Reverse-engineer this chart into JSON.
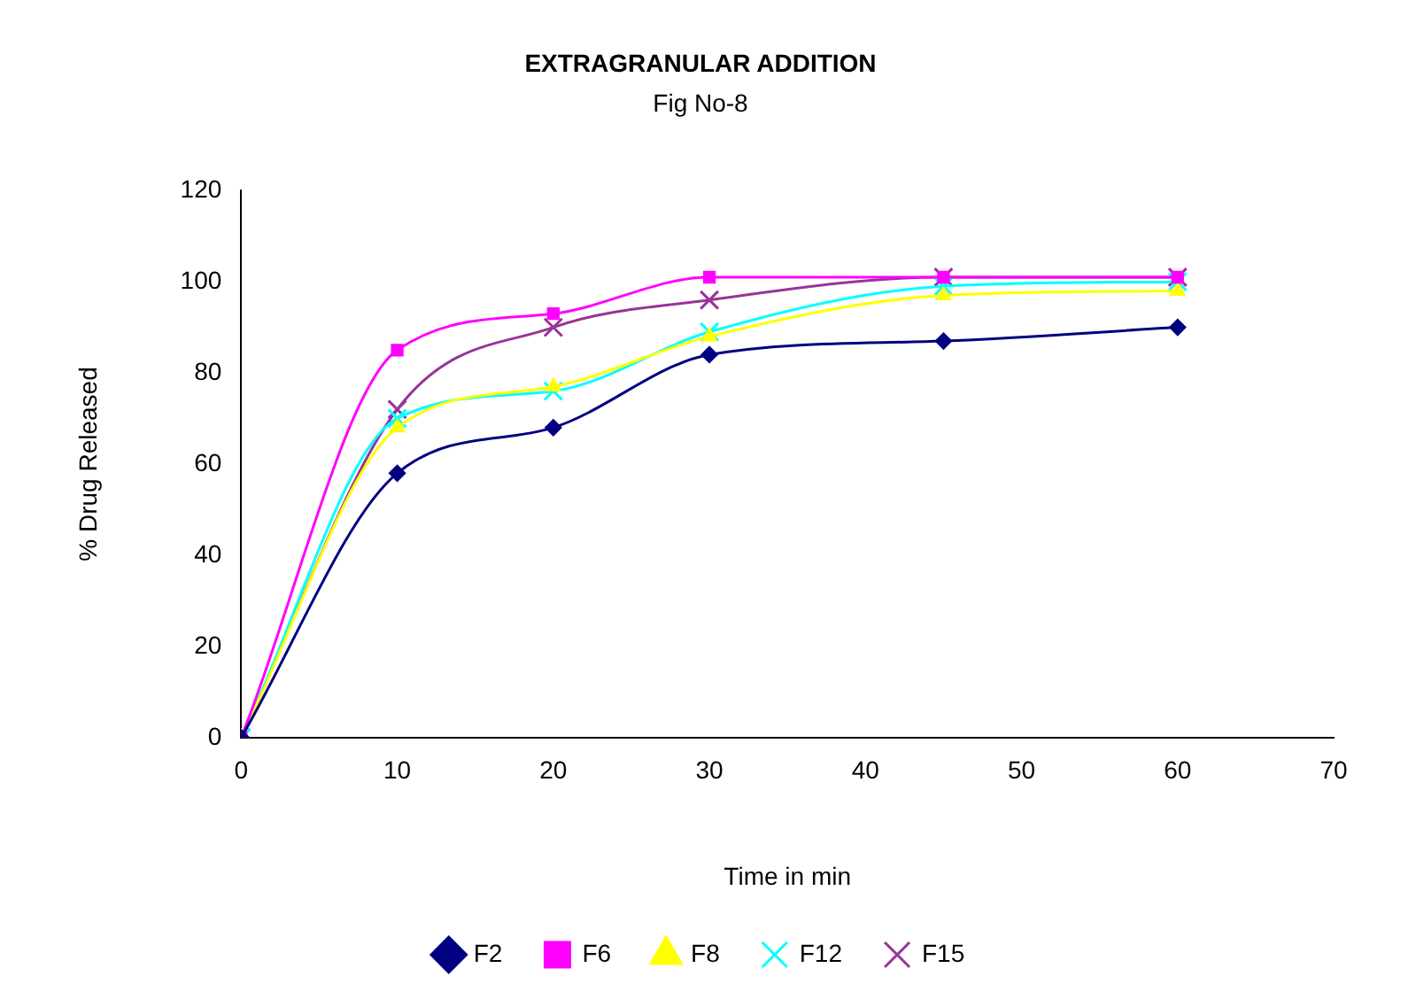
{
  "chart_data": {
    "type": "line",
    "title": "EXTRAGRANULAR ADDITION",
    "subtitle": "Fig No-8",
    "xlabel": "Time in min",
    "ylabel": "% Drug Released",
    "x": [
      0,
      10,
      20,
      30,
      45,
      60
    ],
    "xlim": [
      0,
      70
    ],
    "xticks": [
      0,
      10,
      20,
      30,
      40,
      50,
      60,
      70
    ],
    "ylim": [
      0,
      120
    ],
    "yticks": [
      0,
      20,
      40,
      60,
      80,
      100,
      120
    ],
    "grid": false,
    "legend": "bottom",
    "series": [
      {
        "name": "F2",
        "color": "#000080",
        "marker": "diamond",
        "values": [
          0,
          58,
          68,
          84,
          87,
          90
        ]
      },
      {
        "name": "F6",
        "color": "#ff00ff",
        "marker": "square",
        "values": [
          0,
          85,
          93,
          101,
          101,
          101
        ]
      },
      {
        "name": "F8",
        "color": "#ffff00",
        "marker": "triangle",
        "values": [
          0,
          68,
          77,
          88,
          97,
          98
        ]
      },
      {
        "name": "F12",
        "color": "#00ffff",
        "marker": "cross",
        "values": [
          0,
          70,
          76,
          89,
          99,
          100
        ]
      },
      {
        "name": "F15",
        "color": "#993399",
        "marker": "cross",
        "values": [
          0,
          72,
          90,
          96,
          101,
          101
        ]
      }
    ]
  }
}
